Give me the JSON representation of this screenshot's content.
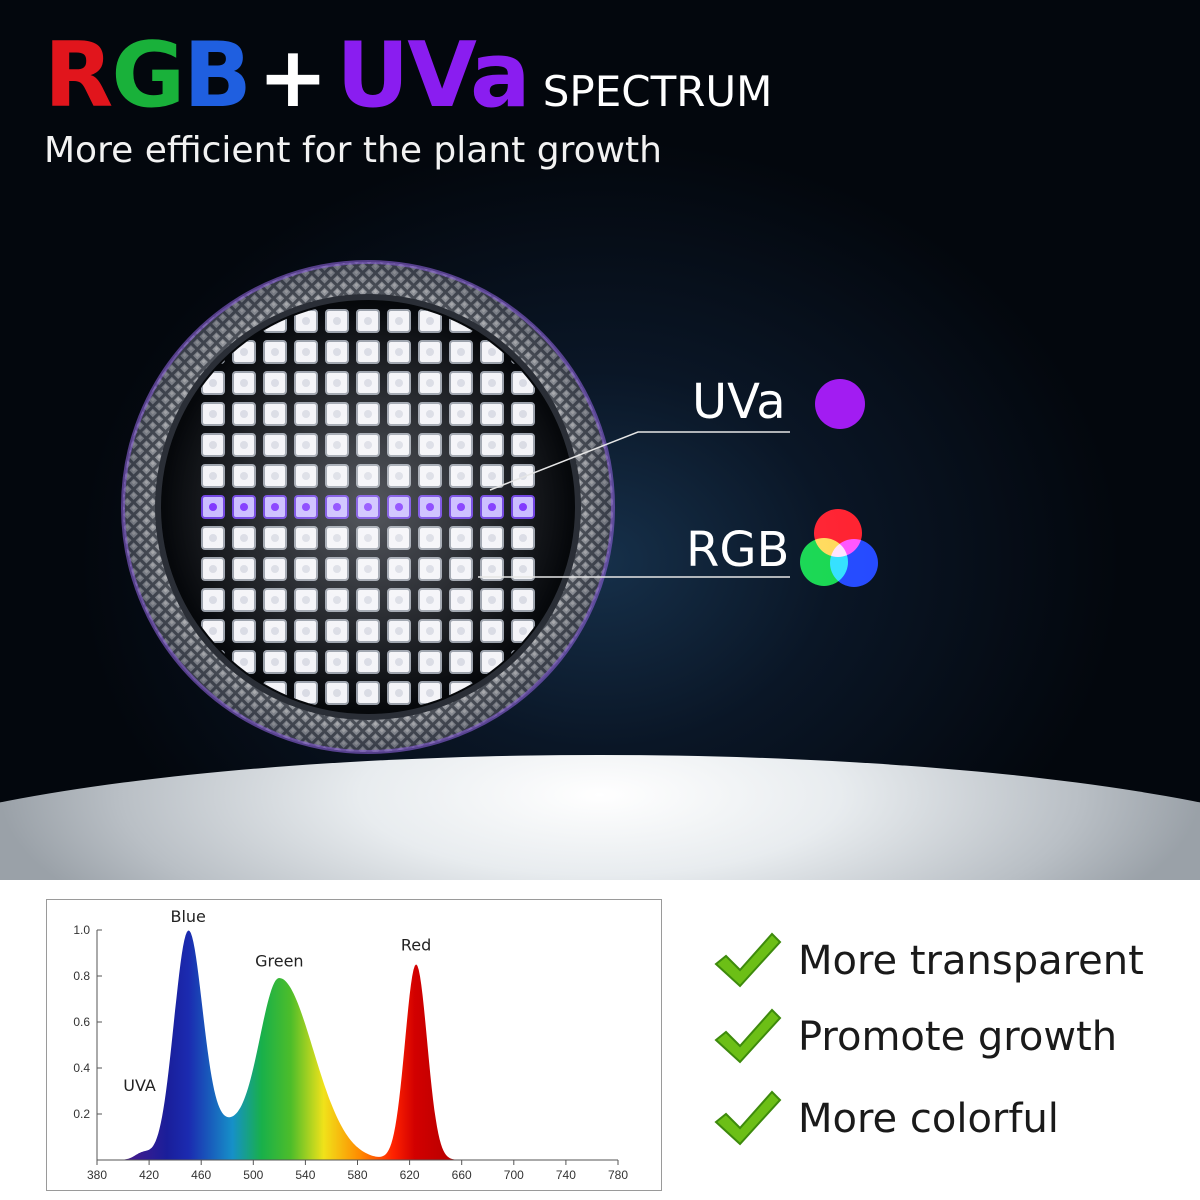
{
  "title": {
    "letters": [
      {
        "text": "R",
        "color": "#e1151c"
      },
      {
        "text": "G",
        "color": "#19b13a"
      },
      {
        "text": "B",
        "color": "#1f5fe0"
      },
      {
        "text": "+",
        "color": "#ffffff"
      },
      {
        "text": "UVa",
        "color": "#8a1df0"
      }
    ],
    "suffix": "SPECTRUM",
    "subtitle": "More efficient for the plant growth"
  },
  "callouts": {
    "uva_label": "UVa",
    "uva_color": "#a21cf2",
    "rgb_label": "RGB",
    "rgb_colors": [
      "#ff1010",
      "#12d435",
      "#1e3cff"
    ]
  },
  "chart_data": {
    "type": "area",
    "x_ticks": [
      "380",
      "420",
      "460",
      "500",
      "540",
      "580",
      "620",
      "660",
      "700",
      "740",
      "780"
    ],
    "y_ticks": [
      "1.0",
      "0.8",
      "0.6",
      "0.4",
      "0.2"
    ],
    "xlim": [
      380,
      780
    ],
    "ylim": [
      0,
      1.0
    ],
    "annotations": [
      "Blue",
      "Green",
      "Red",
      "UVA"
    ],
    "peaks": [
      {
        "name": "Blue",
        "center": 450,
        "height": 0.98
      },
      {
        "name": "Green",
        "center": 520,
        "height": 0.79
      },
      {
        "name": "Red",
        "center": 625,
        "height": 0.85
      }
    ],
    "uva_region": [
      405,
      425
    ]
  },
  "benefits": [
    {
      "label": "More transparent"
    },
    {
      "label": "Promote growth"
    },
    {
      "label": "More colorful"
    }
  ],
  "colors": {
    "check": "#6cbf16",
    "check_dark": "#3d8a0c"
  }
}
